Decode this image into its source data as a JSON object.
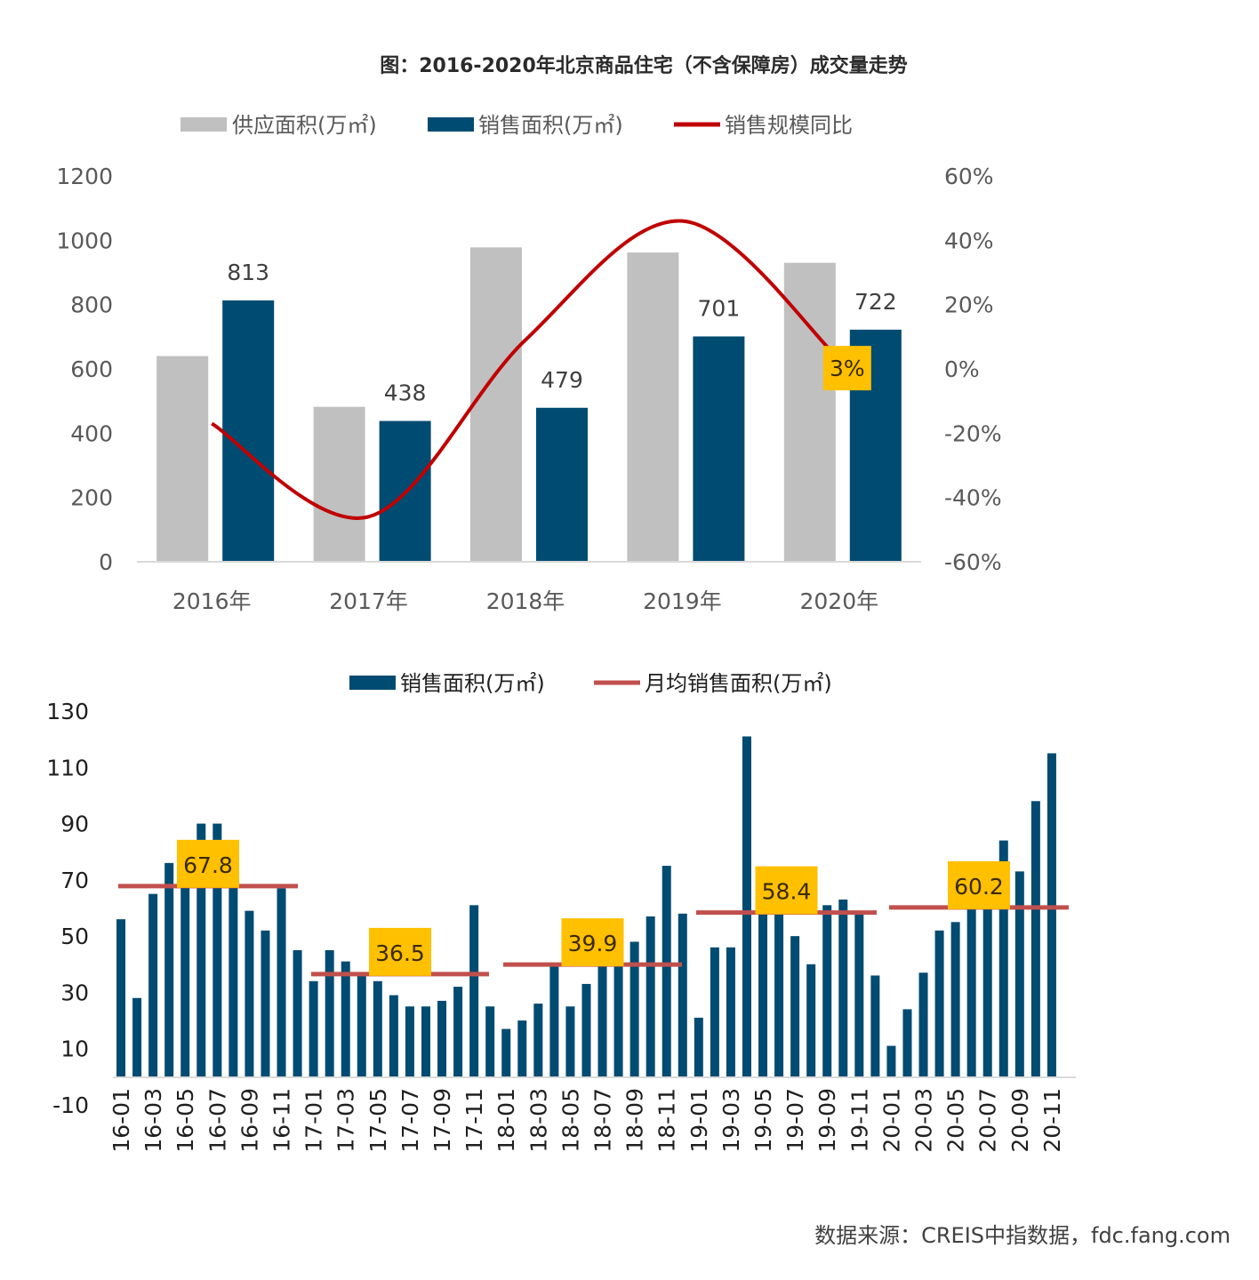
{
  "title": "图：2016-2020年北京商品住宅（不含保障房）成交量走势",
  "source": "数据来源：CREIS中指数据，fdc.fang.com",
  "colors": {
    "supply": "#c0c0c0",
    "sales": "#004b71",
    "yoy": "#c00000",
    "avg": "#c0504d",
    "badge": "#ffc000"
  },
  "chart_data": [
    {
      "type": "bar",
      "categories": [
        "2016年",
        "2017年",
        "2018年",
        "2019年",
        "2020年"
      ],
      "series": [
        {
          "name": "供应面积(万㎡)",
          "type": "bar",
          "axis": "left",
          "values": [
            640,
            482,
            978,
            962,
            930
          ]
        },
        {
          "name": "销售面积(万㎡)",
          "type": "bar",
          "axis": "left",
          "values": [
            813,
            438,
            479,
            701,
            722
          ]
        },
        {
          "name": "销售规模同比",
          "type": "line",
          "axis": "right",
          "values": [
            -17,
            -46,
            9,
            46,
            3
          ]
        }
      ],
      "data_labels": {
        "sales": [
          "813",
          "438",
          "479",
          "701",
          "722"
        ],
        "yoy_last": "3%"
      },
      "ylim": [
        0,
        1200
      ],
      "yticks": [
        "0",
        "200",
        "400",
        "600",
        "800",
        "1000",
        "1200"
      ],
      "y2lim": [
        -60,
        60
      ],
      "y2ticks": [
        "-60%",
        "-40%",
        "-20%",
        "0%",
        "20%",
        "40%",
        "60%"
      ],
      "legend": "top",
      "grid": false
    },
    {
      "type": "bar",
      "x_tick_labels": [
        "16-01",
        "16-03",
        "16-05",
        "16-07",
        "16-09",
        "16-11",
        "17-01",
        "17-03",
        "17-05",
        "17-07",
        "17-09",
        "17-11",
        "18-01",
        "18-03",
        "18-05",
        "18-07",
        "18-09",
        "18-11",
        "19-01",
        "19-03",
        "19-05",
        "19-07",
        "19-09",
        "19-11",
        "20-01",
        "20-03",
        "20-05",
        "20-07",
        "20-09",
        "20-11"
      ],
      "series": [
        {
          "name": "销售面积(万㎡)",
          "type": "bar",
          "values": [
            56,
            28,
            65,
            76,
            69,
            90,
            90,
            84,
            59,
            52,
            67,
            45,
            34,
            45,
            41,
            37,
            34,
            29,
            25,
            25,
            27,
            32,
            61,
            25,
            17,
            20,
            26,
            40,
            25,
            33,
            40,
            56,
            48,
            57,
            75,
            58,
            21,
            46,
            46,
            121,
            65,
            62,
            50,
            40,
            61,
            63,
            58,
            36,
            11,
            24,
            37,
            52,
            55,
            63,
            70,
            84,
            73,
            98,
            115
          ]
        },
        {
          "name": "月均销售面积(万㎡)",
          "type": "line",
          "segments": [
            {
              "from": "16-01",
              "to": "16-12",
              "value": 67.8,
              "label": "67.8"
            },
            {
              "from": "17-01",
              "to": "17-12",
              "value": 36.5,
              "label": "36.5"
            },
            {
              "from": "18-01",
              "to": "18-12",
              "value": 39.9,
              "label": "39.9"
            },
            {
              "from": "19-01",
              "to": "19-12",
              "value": 58.4,
              "label": "58.4"
            },
            {
              "from": "20-01",
              "to": "20-12",
              "value": 60.2,
              "label": "60.2"
            }
          ]
        }
      ],
      "ylim": [
        -10,
        130
      ],
      "yticks": [
        "-10",
        "10",
        "30",
        "50",
        "70",
        "90",
        "110",
        "130"
      ],
      "legend": "top",
      "grid": false
    }
  ]
}
